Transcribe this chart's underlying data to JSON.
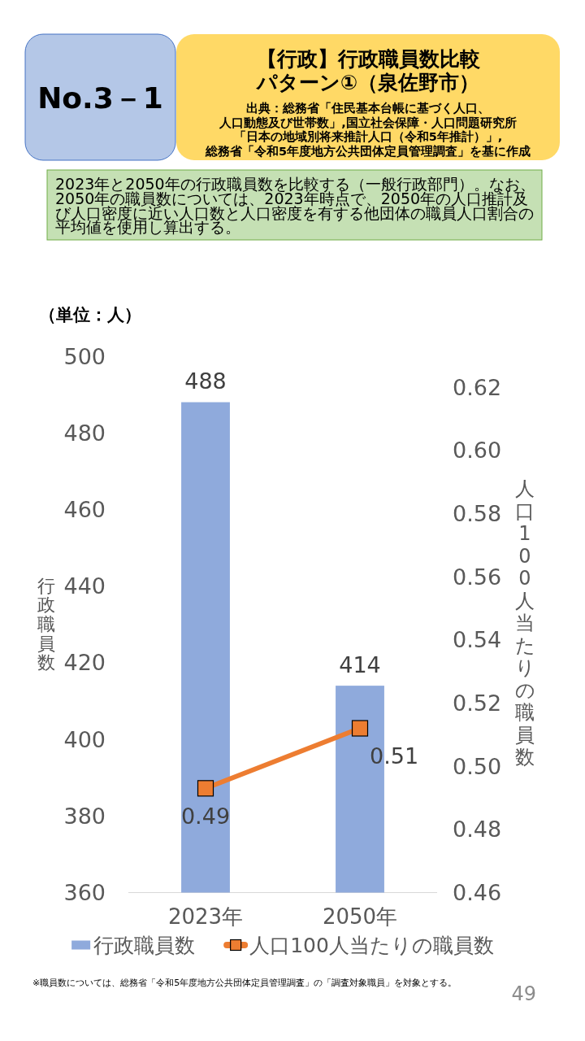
{
  "chart_data": {
    "type": "bar",
    "title": "【行政】行政職員数比較パターン①（泉佐野市）",
    "categories": [
      "2023年",
      "2050年"
    ],
    "series": [
      {
        "name": "行政職員数",
        "color": "#8faadc",
        "values": [
          488,
          414
        ],
        "value_labels": [
          "488",
          "414"
        ]
      },
      {
        "name": "人口100人当たりの職員数",
        "type": "line",
        "axis": "y2",
        "color": "#ed7d31",
        "marker": "square",
        "values": [
          0.493,
          0.512
        ],
        "value_labels": [
          "0.49",
          "0.51"
        ]
      }
    ],
    "ylabel": "行政職員数",
    "y2label": "人口100人当たりの職員数",
    "ylim": [
      360,
      500
    ],
    "yticks": [
      360,
      380,
      400,
      420,
      440,
      460,
      480,
      500
    ],
    "y2lim": [
      0.46,
      0.62
    ],
    "y2ticks": [
      0.46,
      0.48,
      {
        "value": 0.5,
        "label": "0.50"
      },
      0.52,
      0.54,
      0.56,
      0.58,
      {
        "value": 0.6,
        "label": "0.60"
      },
      0.62
    ],
    "legend": "bottom",
    "annotations": [
      "No.3－1",
      "出典：総務省「住民基本台帳に基づく人口、",
      "人口動態及び世帯数」,国立社会保障・人口問題研究所",
      "「日本の地域別将来推計人口（令和5年推計）」,",
      "総務省「令和5年度地方公共団体定員管理調査」を基に作成",
      "2023年と2050年の行政職員数を比較する（一般行政部門）。なお、2050年の職員数については、2023年時点で、2050年の人口推計及び人口密度に近い人口数と人口密度を有する他団体の職員人口割合の平均値を使用し算出する。",
      "（単位：人）",
      "※職員数については、総務省「令和5年度地方公共団体定員管理調査」の「調査対象職員」を対象とする。",
      "49"
    ]
  }
}
